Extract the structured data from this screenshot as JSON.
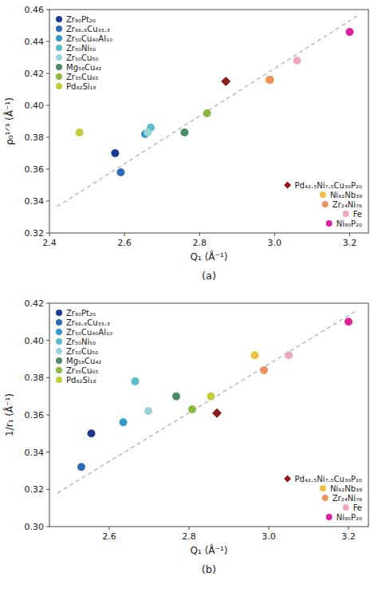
{
  "chart_data": [
    {
      "type": "scatter",
      "title": "(a)",
      "x_label": "Q₁ (Å⁻¹)",
      "y_label": "ρ₀¹ᐟ³ (Å⁻¹)",
      "xlim": [
        2.4,
        3.25
      ],
      "ylim": [
        0.32,
        0.46
      ],
      "xticks": [
        2.4,
        2.6,
        2.8,
        {
          "value": 3.0,
          "label": "3.0"
        },
        3.2
      ],
      "yticks": [
        0.32,
        0.34,
        0.36,
        0.38,
        {
          "value": 0.4,
          "label": "0.40"
        },
        0.42,
        0.44,
        0.46
      ],
      "grid": false,
      "series": [
        {
          "type": "line",
          "line_style": "dashed",
          "color": "#b0b0b0",
          "x": [
            2.42,
            3.22
          ],
          "values": [
            0.3365,
            0.456
          ]
        },
        {
          "name": "Zr₈₀Pt₂₀",
          "color": "#1a3a8f",
          "marker": "circle",
          "legend": "upper left",
          "x": [
            2.575
          ],
          "values": [
            0.37
          ]
        },
        {
          "name": "Zr₆₆.₆Cu₃₃.₃",
          "color": "#2b6cb8",
          "marker": "circle",
          "legend": "upper left",
          "x": [
            2.59
          ],
          "values": [
            0.358
          ]
        },
        {
          "name": "Zr₅₀Cu₄₀Al₁₀",
          "color": "#3498c8",
          "marker": "circle",
          "legend": "upper left",
          "x": [
            2.655
          ],
          "values": [
            0.382
          ]
        },
        {
          "name": "Zr₅₀Ni₅₀",
          "color": "#5bbcce",
          "marker": "circle",
          "legend": "upper left",
          "x": [
            2.67
          ],
          "values": [
            0.386
          ]
        },
        {
          "name": "Zr₅₀Cu₅₀",
          "color": "#96d4d8",
          "marker": "circle",
          "legend": "upper left",
          "x": [
            2.662
          ],
          "values": [
            0.383
          ]
        },
        {
          "name": "Mg₅₈Cu₄₂",
          "color": "#4a8c6a",
          "marker": "circle",
          "legend": "upper left",
          "x": [
            2.76
          ],
          "values": [
            0.383
          ]
        },
        {
          "name": "Zr₃₅Cu₆₅",
          "color": "#8ab840",
          "marker": "circle",
          "legend": "upper left",
          "x": [
            2.82
          ],
          "values": [
            0.395
          ]
        },
        {
          "name": "Pd₈₂Si₁₈",
          "color": "#c4cc38",
          "marker": "circle",
          "legend": "upper left",
          "x": [
            2.48
          ],
          "values": [
            0.383
          ]
        },
        {
          "name": "Pd₄₂.₅Ni₇.₅Cu₃₀P₂₀",
          "color": "#8b1a1a",
          "marker": "diamond",
          "legend": "lower right",
          "x": [
            2.87
          ],
          "values": [
            0.415
          ]
        },
        {
          "name": "Ni₆₂Nb₃₈",
          "color": "#f0c040",
          "marker": "circle",
          "legend": "lower right",
          "x": [
            2.985
          ],
          "values": [
            0.416
          ]
        },
        {
          "name": "Zr₂₄Ni₇₆",
          "color": "#f09060",
          "marker": "circle",
          "legend": "lower right",
          "x": [
            2.988
          ],
          "values": [
            0.416
          ]
        },
        {
          "name": "Fe",
          "color": "#f0a8c0",
          "marker": "circle",
          "legend": "lower right",
          "x": [
            3.06
          ],
          "values": [
            0.428
          ]
        },
        {
          "name": "Ni₈₀P₂₀",
          "color": "#e0209a",
          "marker": "circle",
          "legend": "lower right",
          "x": [
            3.2
          ],
          "values": [
            0.446
          ]
        }
      ]
    },
    {
      "type": "scatter",
      "title": "(b)",
      "x_label": "Q₁ (Å⁻¹)",
      "y_label": "1/r₁ (Å⁻¹)",
      "xlim": [
        2.45,
        3.25
      ],
      "ylim": [
        0.3,
        0.42
      ],
      "xticks": [
        2.6,
        2.8,
        {
          "value": 3.0,
          "label": "3.0"
        },
        3.2
      ],
      "yticks": [
        {
          "value": 0.3,
          "label": "0.30"
        },
        0.32,
        0.34,
        0.36,
        0.38,
        {
          "value": 0.4,
          "label": "0.40"
        },
        0.42
      ],
      "grid": false,
      "series": [
        {
          "type": "line",
          "line_style": "dashed",
          "color": "#b0b0b0",
          "x": [
            2.47,
            3.22
          ],
          "values": [
            0.318,
            0.416
          ]
        },
        {
          "name": "Zr₈₀Pt₂₀",
          "color": "#1a3a8f",
          "marker": "circle",
          "legend": "upper left",
          "x": [
            2.555
          ],
          "values": [
            0.35
          ]
        },
        {
          "name": "Zr₆₆.₆Cu₃₃.₃",
          "color": "#2b6cb8",
          "marker": "circle",
          "legend": "upper left",
          "x": [
            2.53
          ],
          "values": [
            0.332
          ]
        },
        {
          "name": "Zr₅₀Cu₄₀Al₁₀",
          "color": "#3498c8",
          "marker": "circle",
          "legend": "upper left",
          "x": [
            2.635
          ],
          "values": [
            0.356
          ]
        },
        {
          "name": "Zr₅₀Ni₅₀",
          "color": "#5bbcce",
          "marker": "circle",
          "legend": "upper left",
          "x": [
            2.665
          ],
          "values": [
            0.378
          ]
        },
        {
          "name": "Zr₅₀Cu₅₀",
          "color": "#96d4d8",
          "marker": "circle",
          "legend": "upper left",
          "x": [
            2.698
          ],
          "values": [
            0.362
          ]
        },
        {
          "name": "Mg₅₈Cu₄₂",
          "color": "#4a8c6a",
          "marker": "circle",
          "legend": "upper left",
          "x": [
            2.768
          ],
          "values": [
            0.37
          ]
        },
        {
          "name": "Zr₃₅Cu₆₅",
          "color": "#8ab840",
          "marker": "circle",
          "legend": "upper left",
          "x": [
            2.808
          ],
          "values": [
            0.363
          ]
        },
        {
          "name": "Pd₈₂Si₁₈",
          "color": "#c4cc38",
          "marker": "circle",
          "legend": "upper left",
          "x": [
            2.855
          ],
          "values": [
            0.37
          ]
        },
        {
          "name": "Pd₄₂.₅Ni₇.₅Cu₃₀P₂₀",
          "color": "#8b1a1a",
          "marker": "diamond",
          "legend": "lower right",
          "x": [
            2.87
          ],
          "values": [
            0.361
          ]
        },
        {
          "name": "Ni₆₂Nb₃₈",
          "color": "#f0c040",
          "marker": "circle",
          "legend": "lower right",
          "x": [
            2.965
          ],
          "values": [
            0.392
          ]
        },
        {
          "name": "Zr₂₄Ni₇₆",
          "color": "#f09060",
          "marker": "circle",
          "legend": "lower right",
          "x": [
            2.988
          ],
          "values": [
            0.384
          ]
        },
        {
          "name": "Fe",
          "color": "#f0a8c0",
          "marker": "circle",
          "legend": "lower right",
          "x": [
            3.05
          ],
          "values": [
            0.392
          ]
        },
        {
          "name": "Ni₈₀P₂₀",
          "color": "#e0209a",
          "marker": "circle",
          "legend": "lower right",
          "x": [
            3.2
          ],
          "values": [
            0.41
          ]
        }
      ]
    }
  ]
}
